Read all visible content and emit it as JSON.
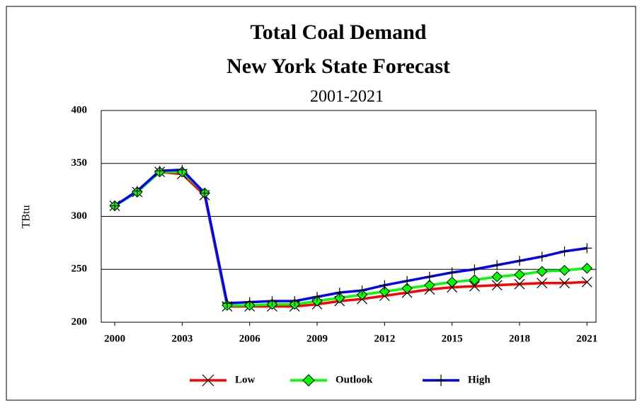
{
  "chart_data": {
    "type": "line",
    "title": "Total Coal Demand",
    "subtitle": "New York State Forecast",
    "annotation": "2001-2021",
    "ylabel": "TBtu",
    "x": [
      2000,
      2001,
      2002,
      2003,
      2004,
      2005,
      2006,
      2007,
      2008,
      2009,
      2010,
      2011,
      2012,
      2013,
      2014,
      2015,
      2016,
      2017,
      2018,
      2019,
      2020,
      2021
    ],
    "series": [
      {
        "name": "Low",
        "color": "#ff0000",
        "marker": "x",
        "values": [
          310,
          323,
          342,
          340,
          320,
          215,
          215,
          215,
          215,
          217,
          220,
          222,
          225,
          228,
          231,
          233,
          234,
          235,
          236,
          237,
          237,
          238
        ]
      },
      {
        "name": "Outlook",
        "color": "#00ff00",
        "marker": "diamond",
        "values": [
          310,
          323,
          342,
          342,
          322,
          216,
          216,
          217,
          217,
          220,
          223,
          226,
          229,
          232,
          235,
          238,
          240,
          243,
          245,
          248,
          249,
          251
        ]
      },
      {
        "name": "High",
        "color": "#0000ff",
        "marker": "plus",
        "values": [
          310,
          324,
          343,
          344,
          322,
          218,
          219,
          220,
          220,
          224,
          228,
          230,
          235,
          239,
          243,
          247,
          250,
          254,
          258,
          262,
          267,
          270
        ]
      }
    ],
    "xlim": [
      1999.4,
      2021.4
    ],
    "xticks": [
      2000,
      2003,
      2006,
      2009,
      2012,
      2015,
      2018,
      2021
    ],
    "ylim": [
      200,
      400
    ],
    "yticks": [
      200,
      250,
      300,
      350,
      400
    ],
    "grid": true,
    "legend": "bottom"
  }
}
